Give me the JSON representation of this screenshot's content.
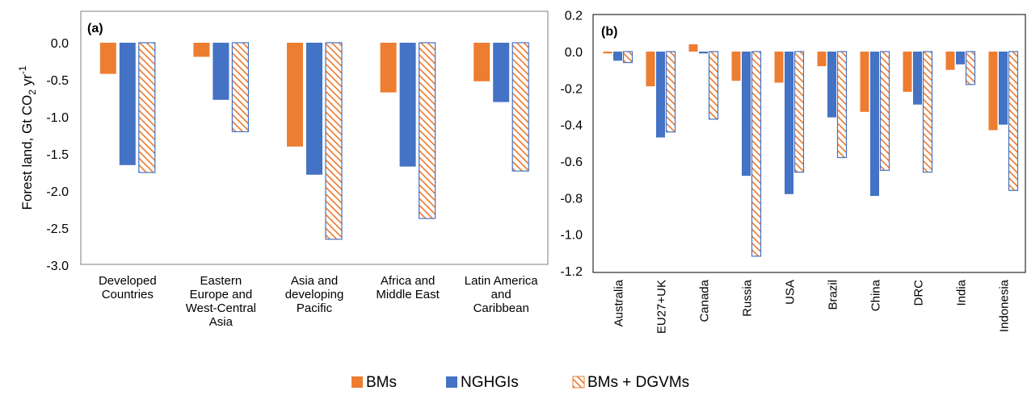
{
  "chart_data": [
    {
      "panel": "(a)",
      "type": "bar",
      "ylabel_main": "Forest land, Gt CO",
      "ylabel_sub": "2",
      "ylabel_unit": " yr",
      "ylabel_sup": "-1",
      "ylim": [
        -3.0,
        0.3
      ],
      "ticks": [
        "0.0",
        "-0.5",
        "-1.0",
        "-1.5",
        "-2.0",
        "-2.5",
        "-3.0"
      ],
      "tick_values": [
        0.0,
        -0.5,
        -1.0,
        -1.5,
        -2.0,
        -2.5,
        -3.0
      ],
      "categories": [
        [
          "Developed",
          "Countries"
        ],
        [
          "Eastern",
          "Europe and",
          "West-Central",
          "Asia"
        ],
        [
          "Asia and",
          "developing",
          "Pacific"
        ],
        [
          "Africa and",
          "Middle East"
        ],
        [
          "Latin America",
          "and",
          "Caribbean"
        ]
      ],
      "series": [
        {
          "name": "BMs",
          "values": [
            -0.42,
            -0.19,
            -1.4,
            -0.67,
            -0.52
          ]
        },
        {
          "name": "NGHGIs",
          "values": [
            -1.65,
            -0.77,
            -1.78,
            -1.67,
            -0.8
          ]
        },
        {
          "name": "BMs + DGVMs",
          "values": [
            -1.75,
            -1.2,
            -2.65,
            -2.37,
            -1.73
          ]
        }
      ]
    },
    {
      "panel": "(b)",
      "type": "bar",
      "ylim": [
        -1.2,
        0.2
      ],
      "ticks": [
        "0.2",
        "0.0",
        "-0.2",
        "-0.4",
        "-0.6",
        "-0.8",
        "-1.0",
        "-1.2"
      ],
      "tick_values": [
        0.2,
        0.0,
        -0.2,
        -0.4,
        -0.6,
        -0.8,
        -1.0,
        -1.2
      ],
      "categories": [
        "Australia",
        "EU27+UK",
        "Canada",
        "Russia",
        "USA",
        "Brazil",
        "China",
        "DRC",
        "India",
        "Indonesia"
      ],
      "series": [
        {
          "name": "BMs",
          "values": [
            -0.01,
            -0.19,
            0.04,
            -0.16,
            -0.17,
            -0.08,
            -0.33,
            -0.22,
            -0.1,
            -0.43
          ]
        },
        {
          "name": "NGHGIs",
          "values": [
            -0.05,
            -0.47,
            -0.01,
            -0.68,
            -0.78,
            -0.36,
            -0.79,
            -0.29,
            -0.07,
            -0.4
          ]
        },
        {
          "name": "BMs + DGVMs",
          "values": [
            -0.06,
            -0.44,
            -0.37,
            -1.12,
            -0.66,
            -0.58,
            -0.65,
            -0.66,
            -0.18,
            -0.76
          ]
        }
      ]
    }
  ],
  "legend": [
    {
      "label": "BMs",
      "color": "#ED7D31",
      "pattern": "solid"
    },
    {
      "label": "NGHGIs",
      "color": "#4472C4",
      "pattern": "solid"
    },
    {
      "label": "BMs + DGVMs",
      "color": "#ED7D31",
      "pattern": "hatched"
    }
  ]
}
